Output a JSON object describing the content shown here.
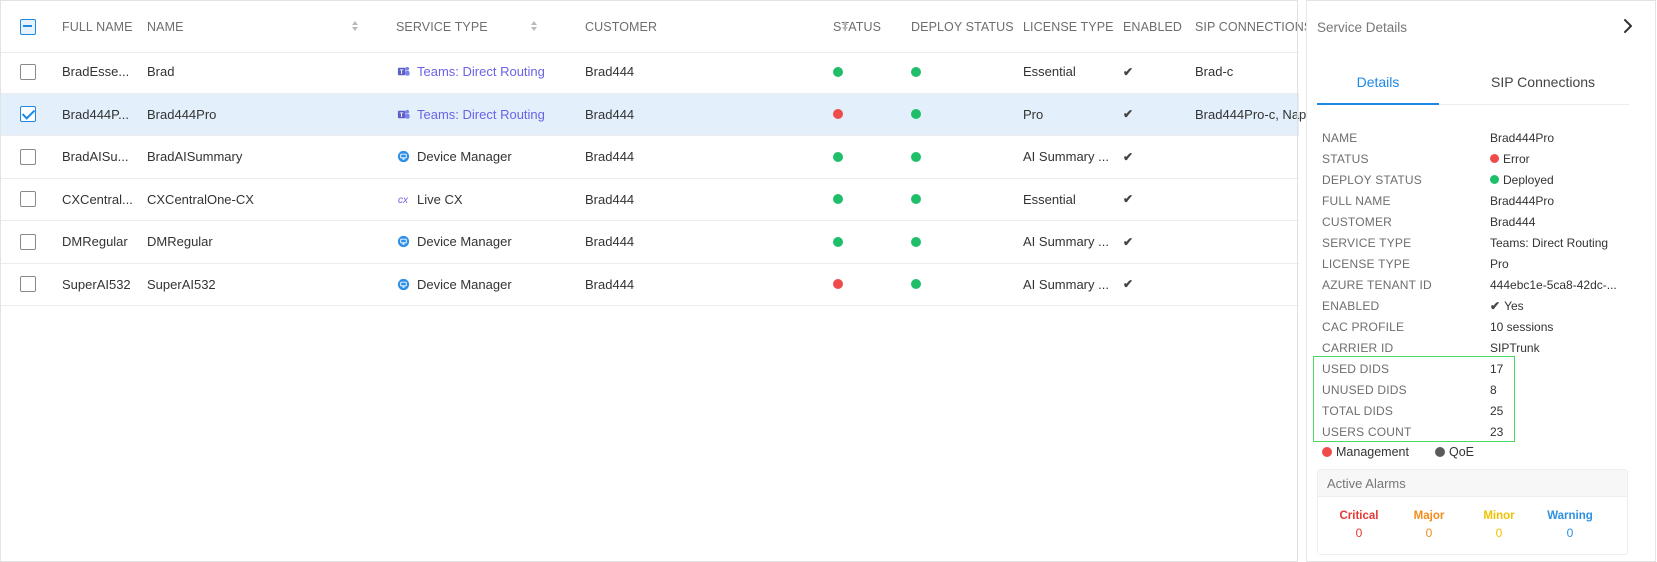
{
  "table": {
    "headers": {
      "full_name": "FULL NAME",
      "name": "NAME",
      "service_type": "SERVICE TYPE",
      "customer": "CUSTOMER",
      "status": "STATUS",
      "deploy_status": "DEPLOY STATUS",
      "license_type": "LICENSE TYPE",
      "enabled": "ENABLED",
      "sip_connections": "SIP CONNECTIONS"
    },
    "rows": [
      {
        "full_name": "BradEsse...",
        "name": "Brad",
        "service_type": "Teams: Direct Routing",
        "service_icon": "teams-icon",
        "customer": "Brad444",
        "status": "green",
        "deploy_status": "green",
        "license_type": "Essential",
        "enabled": "✔",
        "sip_connections": "Brad-c",
        "selected": false
      },
      {
        "full_name": "Brad444P...",
        "name": "Brad444Pro",
        "service_type": "Teams: Direct Routing",
        "service_icon": "teams-icon",
        "customer": "Brad444",
        "status": "red",
        "deploy_status": "green",
        "license_type": "Pro",
        "enabled": "✔",
        "sip_connections": "Brad444Pro-c, Nap",
        "selected": true
      },
      {
        "full_name": "BradAISu...",
        "name": "BradAISummary",
        "service_type": "Device Manager",
        "service_icon": "device-manager-icon",
        "customer": "Brad444",
        "status": "green",
        "deploy_status": "green",
        "license_type": "AI Summary ...",
        "enabled": "✔",
        "sip_connections": "",
        "selected": false
      },
      {
        "full_name": "CXCentral...",
        "name": "CXCentralOne-CX",
        "service_type": "Live CX",
        "service_icon": "live-cx-icon",
        "customer": "Brad444",
        "status": "green",
        "deploy_status": "green",
        "license_type": "Essential",
        "enabled": "✔",
        "sip_connections": "",
        "selected": false
      },
      {
        "full_name": "DMRegular",
        "name": "DMRegular",
        "service_type": "Device Manager",
        "service_icon": "device-manager-icon",
        "customer": "Brad444",
        "status": "green",
        "deploy_status": "green",
        "license_type": "AI Summary ...",
        "enabled": "✔",
        "sip_connections": "",
        "selected": false
      },
      {
        "full_name": "SuperAI532",
        "name": "SuperAI532",
        "service_type": "Device Manager",
        "service_icon": "device-manager-icon",
        "customer": "Brad444",
        "status": "red",
        "deploy_status": "green",
        "license_type": "AI Summary ...",
        "enabled": "✔",
        "sip_connections": "",
        "selected": false
      }
    ]
  },
  "panel": {
    "title": "Service Details",
    "tabs": [
      "Details",
      "SIP Connections"
    ],
    "active_tab": "Details",
    "properties": [
      {
        "key": "NAME",
        "value": "Brad444Pro"
      },
      {
        "key": "STATUS",
        "value": "Error",
        "dot": "red"
      },
      {
        "key": "DEPLOY STATUS",
        "value": "Deployed",
        "dot": "green"
      },
      {
        "key": "FULL NAME",
        "value": "Brad444Pro"
      },
      {
        "key": "CUSTOMER",
        "value": "Brad444"
      },
      {
        "key": "SERVICE TYPE",
        "value": "Teams: Direct Routing"
      },
      {
        "key": "LICENSE TYPE",
        "value": "Pro"
      },
      {
        "key": "AZURE TENANT ID",
        "value": "444ebc1e-5ca8-42dc-..."
      },
      {
        "key": "ENABLED",
        "value": "Yes",
        "check": true
      },
      {
        "key": "CAC PROFILE",
        "value": "10 sessions"
      },
      {
        "key": "CARRIER ID",
        "value": "SIPTrunk"
      },
      {
        "key": "USED DIDS",
        "value": "17"
      },
      {
        "key": "UNUSED DIDS",
        "value": "8"
      },
      {
        "key": "TOTAL DIDS",
        "value": "25"
      },
      {
        "key": "USERS COUNT",
        "value": "23"
      }
    ],
    "legend": [
      {
        "label": "Management",
        "color": "red"
      },
      {
        "label": "QoE",
        "color": "grey"
      }
    ],
    "alarms": {
      "title": "Active Alarms",
      "levels": [
        {
          "label": "Critical",
          "count": "0",
          "color": "#e53935"
        },
        {
          "label": "Major",
          "count": "0",
          "color": "#f28c1b"
        },
        {
          "label": "Minor",
          "count": "0",
          "color": "#f2c200"
        },
        {
          "label": "Warning",
          "count": "0",
          "color": "#2e8fe0"
        }
      ]
    }
  },
  "colors": {
    "accent": "#1e88e5",
    "link": "#6a63e6",
    "status_green": "#1fbf6a",
    "status_red": "#ef4b4b",
    "highlight": "#4cd964"
  }
}
